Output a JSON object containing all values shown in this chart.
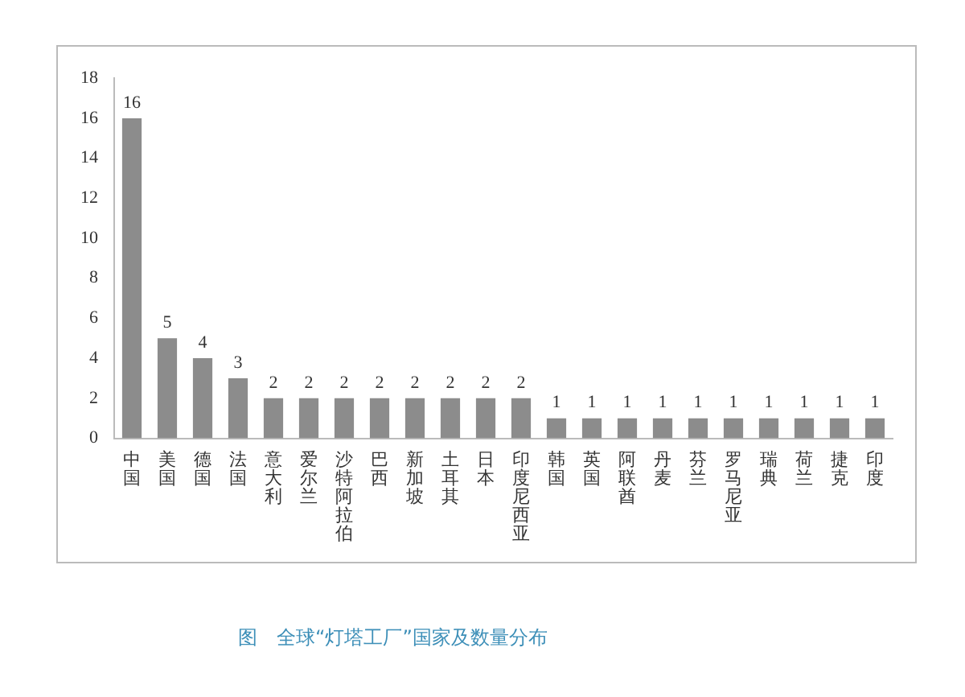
{
  "chart_data": {
    "type": "bar",
    "title": "图　全球“灯塔工厂”国家及数量分布",
    "categories": [
      "中国",
      "美国",
      "德国",
      "法国",
      "意大利",
      "爱尔兰",
      "沙特阿拉伯",
      "巴西",
      "新加坡",
      "土耳其",
      "日本",
      "印度尼西亚",
      "韩国",
      "英国",
      "阿联酋",
      "丹麦",
      "芬兰",
      "罗马尼亚",
      "瑞典",
      "荷兰",
      "捷克",
      "印度"
    ],
    "values": [
      16,
      5,
      4,
      3,
      2,
      2,
      2,
      2,
      2,
      2,
      2,
      2,
      1,
      1,
      1,
      1,
      1,
      1,
      1,
      1,
      1,
      1
    ],
    "color": "#8c8c8c",
    "ylim": [
      0,
      18
    ],
    "yticks": [
      0,
      2,
      4,
      6,
      8,
      10,
      12,
      14,
      16,
      18
    ],
    "grid": false,
    "data_labels": true
  }
}
